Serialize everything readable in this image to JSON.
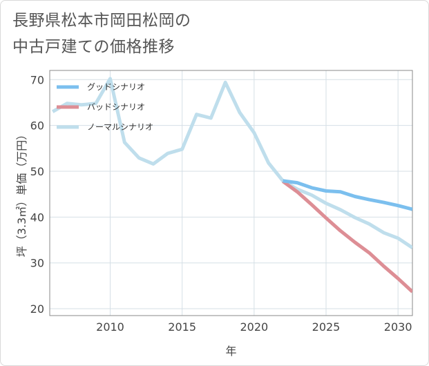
{
  "title_line1": "長野県松本市岡田松岡の",
  "title_line2": "中古戸建ての価格推移",
  "chart_data": {
    "type": "line",
    "xlabel": "年",
    "ylabel": "坪（3.3㎡）単価（万円）",
    "xlim": [
      2005.8,
      2031
    ],
    "ylim": [
      18.5,
      72
    ],
    "xticks": [
      2010,
      2015,
      2020,
      2025,
      2030
    ],
    "yticks": [
      20,
      30,
      40,
      50,
      60,
      70
    ],
    "grid": true,
    "legend_position": "top-left",
    "series": [
      {
        "name": "グッドシナリオ",
        "color": "#7bbfee",
        "points": [
          [
            2022,
            47.9
          ],
          [
            2023,
            47.5
          ],
          [
            2024,
            46.4
          ],
          [
            2025,
            45.7
          ],
          [
            2026,
            45.5
          ],
          [
            2027,
            44.5
          ],
          [
            2028,
            43.8
          ],
          [
            2029,
            43.2
          ],
          [
            2030,
            42.5
          ],
          [
            2031,
            41.7
          ]
        ]
      },
      {
        "name": "バッドシナリオ",
        "color": "#dd8e95",
        "points": [
          [
            2022,
            47.8
          ],
          [
            2023,
            45.5
          ],
          [
            2024,
            42.7
          ],
          [
            2025,
            39.8
          ],
          [
            2026,
            37.0
          ],
          [
            2027,
            34.5
          ],
          [
            2028,
            32.2
          ],
          [
            2029,
            29.3
          ],
          [
            2030,
            26.6
          ],
          [
            2031,
            23.7
          ]
        ]
      },
      {
        "name": "ノーマルシナリオ",
        "color": "#bfdeec",
        "points": [
          [
            2006,
            63.0
          ],
          [
            2007,
            64.8
          ],
          [
            2008,
            64.5
          ],
          [
            2009,
            64.8
          ],
          [
            2010,
            70.2
          ],
          [
            2011,
            56.3
          ],
          [
            2012,
            52.9
          ],
          [
            2013,
            51.6
          ],
          [
            2014,
            53.9
          ],
          [
            2015,
            54.8
          ],
          [
            2016,
            62.4
          ],
          [
            2017,
            61.6
          ],
          [
            2018,
            69.4
          ],
          [
            2019,
            62.8
          ],
          [
            2020,
            58.4
          ],
          [
            2021,
            51.8
          ],
          [
            2022,
            47.9
          ],
          [
            2023,
            46.1
          ],
          [
            2024,
            44.8
          ],
          [
            2025,
            43.0
          ],
          [
            2026,
            41.6
          ],
          [
            2027,
            39.9
          ],
          [
            2028,
            38.5
          ],
          [
            2029,
            36.6
          ],
          [
            2030,
            35.4
          ],
          [
            2031,
            33.3
          ]
        ]
      }
    ]
  }
}
